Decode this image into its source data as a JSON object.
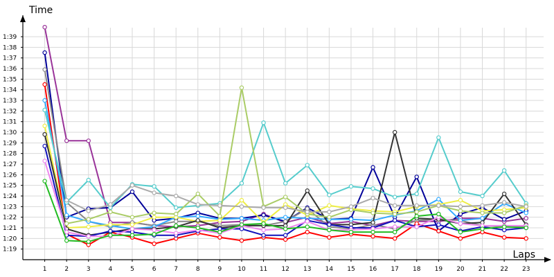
{
  "chart_data": {
    "type": "line",
    "title": "",
    "ylabel": "Time",
    "xlabel": "Laps",
    "grid": true,
    "legend": "none",
    "x": [
      1,
      2,
      3,
      4,
      5,
      6,
      7,
      8,
      9,
      10,
      11,
      12,
      13,
      14,
      15,
      16,
      17,
      18,
      19,
      20,
      21,
      22,
      23
    ],
    "xlim": [
      0,
      23.8
    ],
    "ylim": [
      78.0,
      100.5
    ],
    "y_ticks": [
      79,
      80,
      81,
      82,
      83,
      84,
      85,
      86,
      87,
      88,
      89,
      90,
      91,
      92,
      93,
      94,
      95,
      96,
      97,
      98,
      99
    ],
    "y_tick_labels": [
      "1:19",
      "1:20",
      "1:21",
      "1:22",
      "1:23",
      "1:24",
      "1:25",
      "1:26",
      "1:27",
      "1:28",
      "1:29",
      "1:30",
      "1:31",
      "1:32",
      "1:33",
      "1:34",
      "1:35",
      "1:36",
      "1:37",
      "1:38",
      "1:39"
    ],
    "series": [
      {
        "color": "#993399",
        "values": [
          99.9,
          89.2,
          89.2,
          81.5,
          81.5,
          81.2,
          81.1,
          81.2,
          81.5,
          81.6,
          82.3,
          81.5,
          82.0,
          81.4,
          81.6,
          81.2,
          81.7,
          81.6,
          81.6,
          81.9,
          81.9,
          81.6,
          81.9
        ]
      },
      {
        "color": "#000099",
        "values": [
          97.5,
          82.0,
          82.8,
          82.9,
          84.4,
          81.7,
          81.9,
          82.4,
          81.9,
          81.9,
          82.2,
          81.6,
          82.9,
          81.8,
          81.9,
          86.7,
          82.0,
          85.8,
          80.7,
          82.3,
          82.9,
          81.8,
          82.6
        ]
      },
      {
        "color": "#888888",
        "values": [
          95.9,
          83.4,
          81.6,
          81.1,
          81.5,
          81.2,
          81.6,
          81.6,
          81.2,
          81.3,
          81.2,
          81.6,
          82.8,
          81.1,
          80.9,
          81.3,
          80.9,
          81.7,
          81.8,
          81.7,
          81.2,
          81.1,
          81.1
        ]
      },
      {
        "color": "#ff0000",
        "values": [
          94.5,
          80.4,
          79.4,
          80.6,
          80.1,
          79.5,
          80.0,
          80.5,
          80.1,
          79.8,
          80.1,
          79.9,
          80.6,
          80.1,
          80.4,
          80.2,
          80.0,
          81.4,
          80.7,
          80.0,
          80.6,
          80.1,
          80.0
        ]
      },
      {
        "color": "#33aaff",
        "values": [
          93.0,
          82.2,
          81.6,
          81.2,
          80.9,
          81.1,
          82.0,
          82.1,
          81.8,
          81.9,
          81.7,
          82.0,
          81.9,
          81.8,
          81.8,
          81.7,
          82.2,
          82.6,
          83.7,
          81.7,
          81.9,
          83.3,
          82.4
        ]
      },
      {
        "color": "#55cccc",
        "values": [
          92.1,
          83.4,
          85.5,
          82.9,
          85.1,
          84.9,
          82.9,
          83.1,
          83.3,
          85.2,
          90.9,
          85.2,
          86.9,
          84.1,
          84.9,
          84.7,
          83.9,
          84.2,
          89.5,
          84.4,
          84.0,
          86.4,
          83.3
        ]
      },
      {
        "color": "#eeee44",
        "values": [
          90.6,
          81.0,
          81.1,
          81.3,
          81.3,
          82.0,
          82.0,
          81.6,
          81.7,
          83.6,
          81.5,
          83.2,
          82.2,
          83.1,
          82.8,
          82.6,
          82.5,
          83.0,
          83.2,
          83.6,
          82.6,
          82.7,
          82.9
        ]
      },
      {
        "color": "#333333",
        "values": [
          89.8,
          80.9,
          80.3,
          80.6,
          80.9,
          80.9,
          81.1,
          81.7,
          81.0,
          81.2,
          81.2,
          81.2,
          84.5,
          81.3,
          81.3,
          81.5,
          90.0,
          81.9,
          81.8,
          81.4,
          81.5,
          84.2,
          81.3
        ]
      },
      {
        "color": "#1111bb",
        "values": [
          88.7,
          80.3,
          80.2,
          80.7,
          80.6,
          80.3,
          80.3,
          80.7,
          80.9,
          80.9,
          80.3,
          80.3,
          81.7,
          81.3,
          81.0,
          81.0,
          81.7,
          81.1,
          81.3,
          80.7,
          81.1,
          80.8,
          81.0
        ]
      },
      {
        "color": "#ee88ee",
        "values": [
          87.3,
          80.6,
          80.2,
          80.2,
          80.9,
          80.8,
          80.5,
          80.8,
          80.5,
          81.2,
          80.8,
          80.9,
          81.6,
          80.8,
          80.8,
          80.9,
          81.1,
          81.1,
          82.0,
          81.4,
          81.2,
          81.2,
          81.2
        ]
      },
      {
        "color": "#22bb22",
        "values": [
          85.4,
          79.8,
          79.7,
          80.3,
          80.3,
          80.4,
          81.2,
          81.0,
          80.6,
          81.3,
          81.4,
          80.9,
          81.1,
          80.8,
          80.6,
          80.6,
          80.6,
          82.1,
          82.3,
          80.6,
          80.9,
          81.1,
          81.0
        ]
      },
      {
        "color": "#aacc66",
        "values": [
          null,
          81.4,
          81.8,
          82.5,
          82.0,
          82.4,
          82.3,
          84.2,
          82.1,
          94.2,
          83.0,
          83.9,
          82.3,
          82.0,
          82.7,
          82.4,
          82.3,
          82.5,
          83.1,
          82.6,
          82.4,
          82.4,
          83.1
        ]
      },
      {
        "color": "#aaaaaa",
        "values": [
          null,
          83.6,
          82.6,
          83.2,
          85.0,
          84.3,
          84.0,
          83.2,
          83.1,
          83.0,
          82.9,
          82.9,
          82.5,
          82.5,
          83.0,
          83.8,
          83.1,
          83.1,
          83.1,
          83.0,
          83.1,
          83.4,
          83.0
        ]
      }
    ]
  }
}
